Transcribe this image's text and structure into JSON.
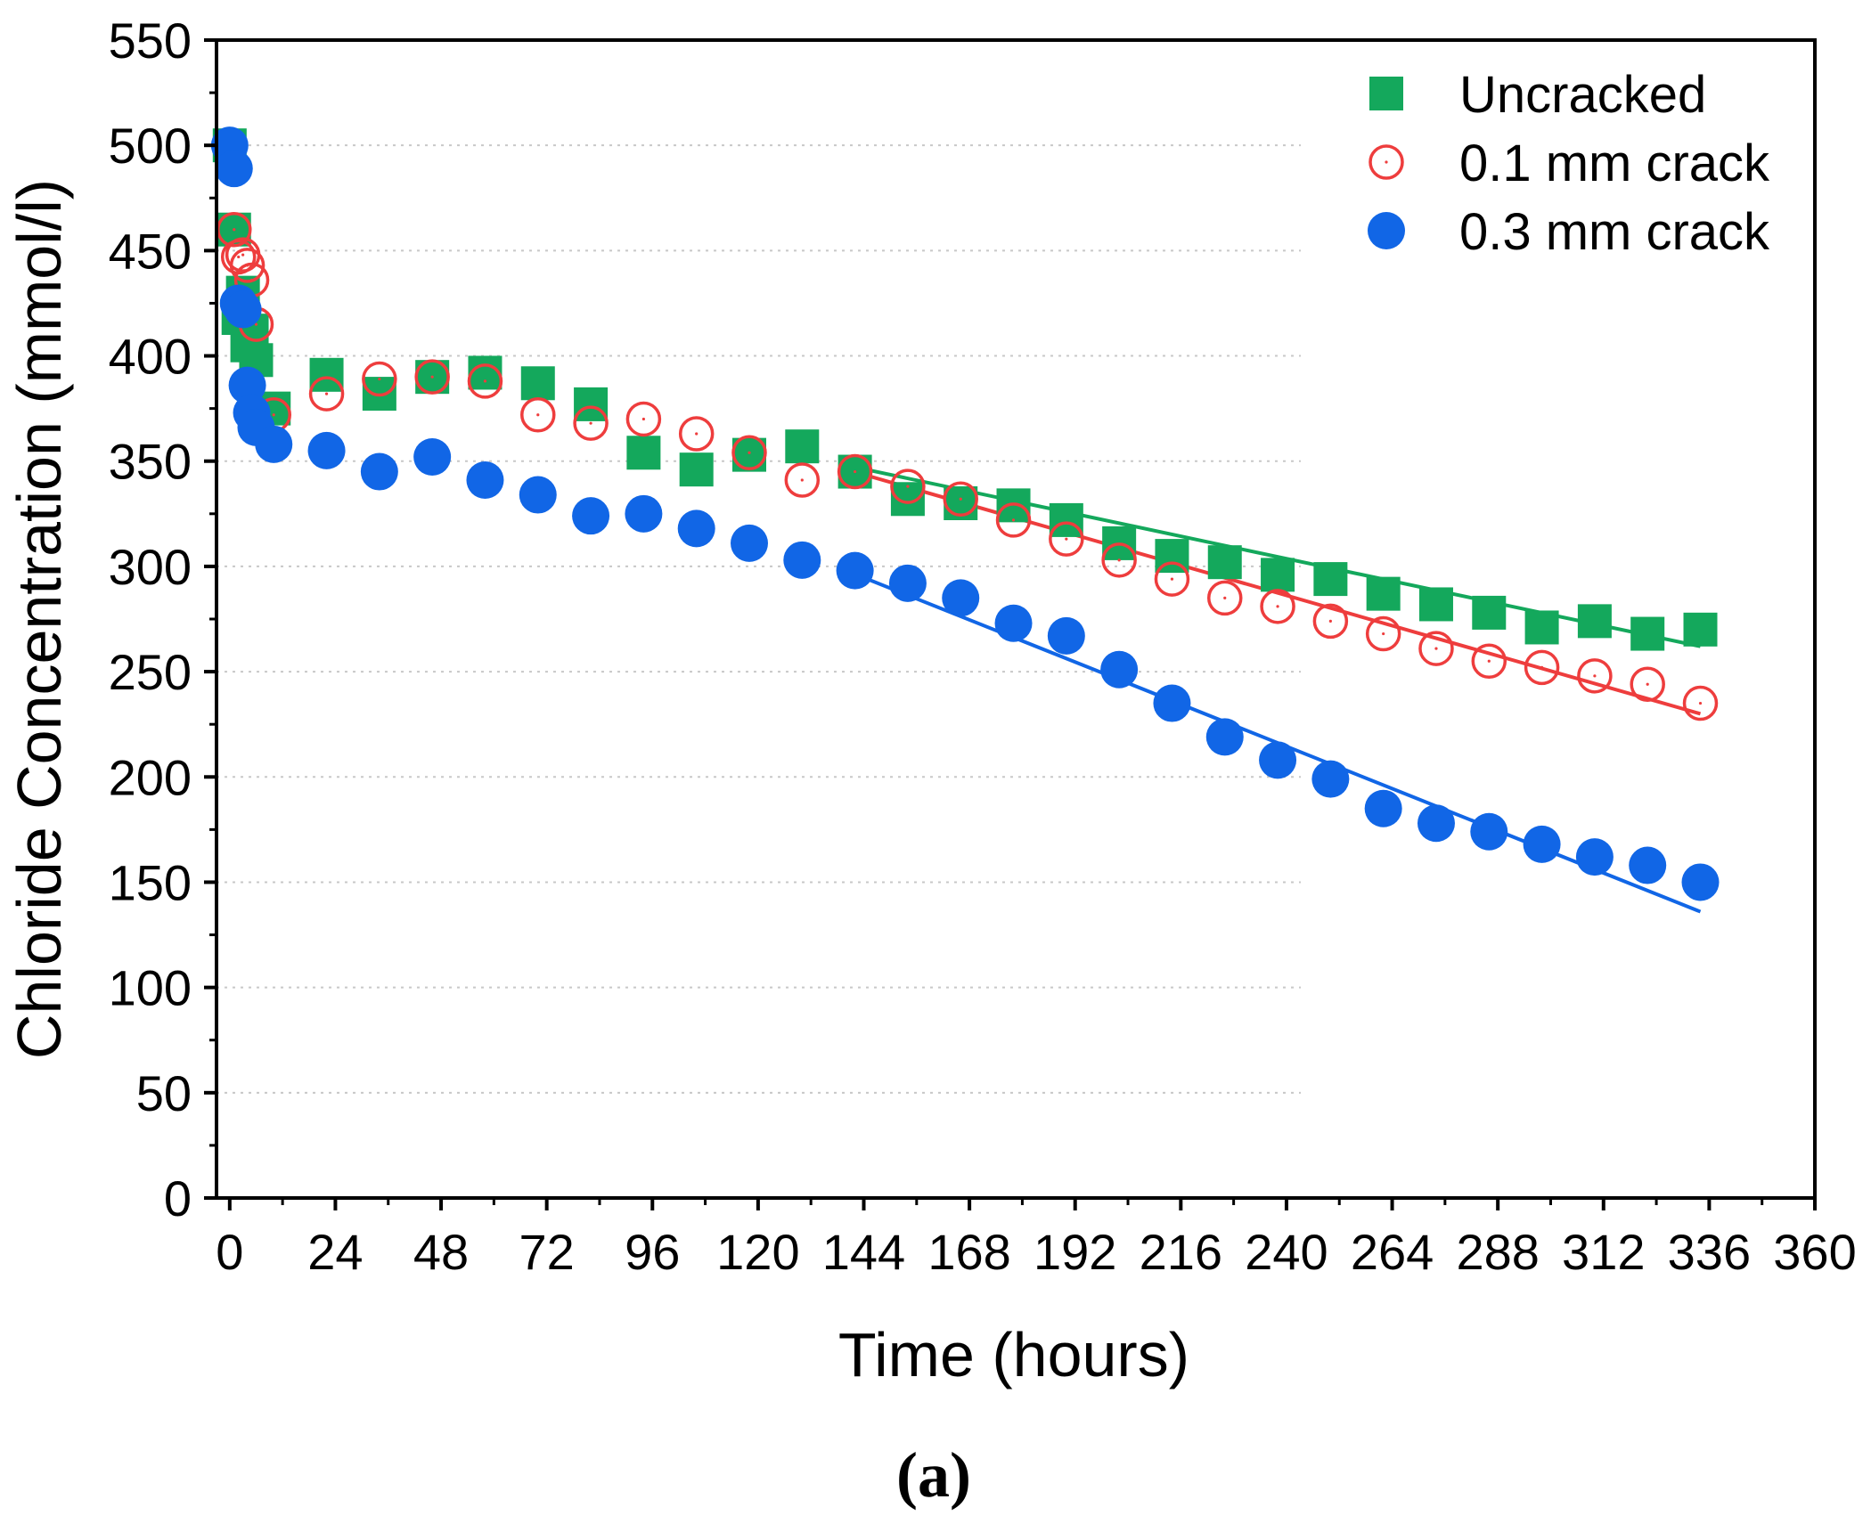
{
  "chart_data": {
    "type": "scatter",
    "xlabel": "Time (hours)",
    "ylabel": "Chloride Concentration (mmol/l)",
    "caption": "(a)",
    "xlim": [
      -3,
      360
    ],
    "ylim": [
      0,
      550
    ],
    "xticks": [
      "0",
      "24",
      "48",
      "72",
      "96",
      "120",
      "144",
      "168",
      "192",
      "216",
      "240",
      "264",
      "288",
      "312",
      "336",
      "360"
    ],
    "yticks": [
      "0",
      "50",
      "100",
      "150",
      "200",
      "250",
      "300",
      "350",
      "400",
      "450",
      "500",
      "550"
    ],
    "grid": "horizontal dotted",
    "legend_position": "top-right",
    "series": [
      {
        "name": "Uncracked",
        "marker": "square",
        "color": "#14a85c",
        "x": [
          0,
          1,
          2,
          3,
          4,
          5,
          6,
          10,
          22,
          34,
          46,
          58,
          70,
          82,
          94,
          106,
          118,
          130,
          142,
          154,
          166,
          178,
          190,
          202,
          214,
          226,
          238,
          250,
          262,
          274,
          286,
          298,
          310,
          322,
          334
        ],
        "y": [
          500,
          460,
          418,
          430,
          405,
          412,
          398,
          375,
          391,
          382,
          390,
          392,
          387,
          377,
          354,
          346,
          353,
          357,
          345,
          332,
          330,
          329,
          322,
          311,
          305,
          302,
          296,
          294,
          287,
          282,
          278,
          271,
          274,
          268,
          270
        ],
        "fit": {
          "x": [
            140,
            334
          ],
          "y": [
            348,
            262
          ]
        }
      },
      {
        "name": "0.1 mm crack",
        "marker": "open-circle",
        "color": "#ee3d3d",
        "x": [
          0,
          1,
          2,
          3,
          4,
          5,
          6,
          10,
          22,
          34,
          46,
          58,
          70,
          82,
          94,
          106,
          118,
          130,
          142,
          154,
          166,
          178,
          190,
          202,
          214,
          226,
          238,
          250,
          262,
          274,
          286,
          298,
          310,
          322,
          334
        ],
        "y": [
          500,
          460,
          447,
          448,
          443,
          436,
          415,
          372,
          382,
          389,
          390,
          388,
          372,
          368,
          370,
          363,
          354,
          341,
          345,
          338,
          332,
          322,
          313,
          303,
          294,
          285,
          281,
          274,
          268,
          261,
          255,
          252,
          248,
          244,
          235
        ],
        "fit": {
          "x": [
            140,
            334
          ],
          "y": [
            346,
            230
          ]
        }
      },
      {
        "name": "0.3 mm crack",
        "marker": "filled-circle",
        "color": "#1166e6",
        "x": [
          0,
          1,
          2,
          3,
          4,
          5,
          6,
          10,
          22,
          34,
          46,
          58,
          70,
          82,
          94,
          106,
          118,
          130,
          142,
          154,
          166,
          178,
          190,
          202,
          214,
          226,
          238,
          250,
          262,
          274,
          286,
          298,
          310,
          322,
          334
        ],
        "y": [
          500,
          489,
          425,
          422,
          386,
          373,
          366,
          358,
          355,
          345,
          352,
          341,
          334,
          324,
          325,
          318,
          311,
          303,
          298,
          292,
          285,
          273,
          267,
          251,
          235,
          219,
          208,
          199,
          185,
          178,
          174,
          168,
          162,
          158,
          150
        ],
        "fit": {
          "x": [
            140,
            334
          ],
          "y": [
            298,
            136
          ]
        }
      }
    ]
  }
}
